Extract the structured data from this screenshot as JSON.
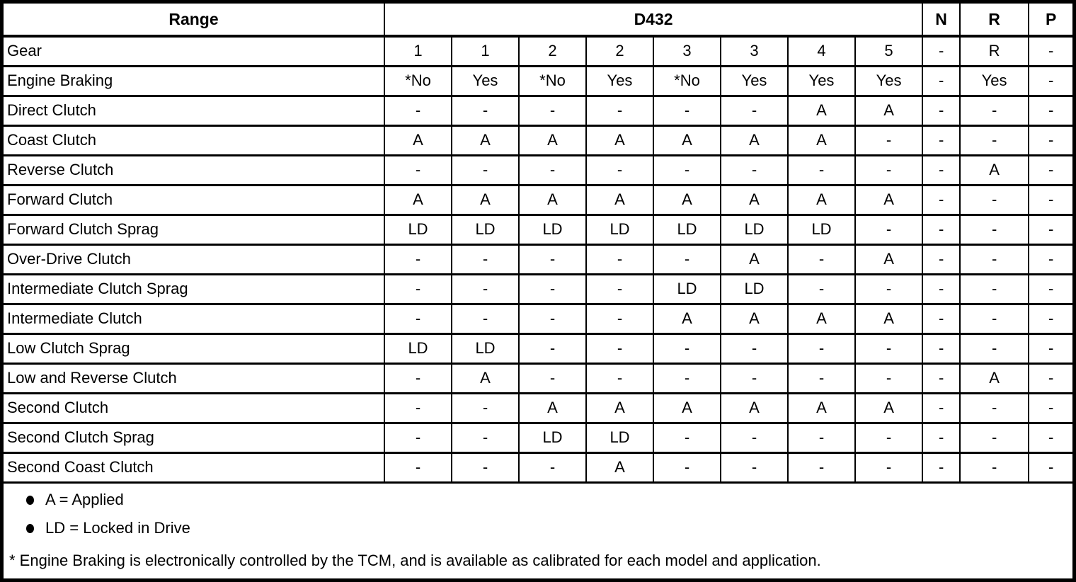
{
  "table": {
    "header": {
      "range": "Range",
      "group": "D432",
      "n": "N",
      "r": "R",
      "p": "P"
    },
    "rows": [
      {
        "label": "Gear",
        "values": [
          "1",
          "1",
          "2",
          "2",
          "3",
          "3",
          "4",
          "5",
          "-",
          "R",
          "-"
        ]
      },
      {
        "label": "Engine Braking",
        "values": [
          "*No",
          "Yes",
          "*No",
          "Yes",
          "*No",
          "Yes",
          "Yes",
          "Yes",
          "-",
          "Yes",
          "-"
        ]
      },
      {
        "label": "Direct Clutch",
        "values": [
          "-",
          "-",
          "-",
          "-",
          "-",
          "-",
          "A",
          "A",
          "-",
          "-",
          "-"
        ]
      },
      {
        "label": "Coast Clutch",
        "values": [
          "A",
          "A",
          "A",
          "A",
          "A",
          "A",
          "A",
          "-",
          "-",
          "-",
          "-"
        ]
      },
      {
        "label": "Reverse Clutch",
        "values": [
          "-",
          "-",
          "-",
          "-",
          "-",
          "-",
          "-",
          "-",
          "-",
          "A",
          "-"
        ]
      },
      {
        "label": "Forward Clutch",
        "values": [
          "A",
          "A",
          "A",
          "A",
          "A",
          "A",
          "A",
          "A",
          "-",
          "-",
          "-"
        ]
      },
      {
        "label": "Forward Clutch Sprag",
        "values": [
          "LD",
          "LD",
          "LD",
          "LD",
          "LD",
          "LD",
          "LD",
          "-",
          "-",
          "-",
          "-"
        ]
      },
      {
        "label": "Over-Drive Clutch",
        "values": [
          "-",
          "-",
          "-",
          "-",
          "-",
          "A",
          "-",
          "A",
          "-",
          "-",
          "-"
        ]
      },
      {
        "label": "Intermediate Clutch Sprag",
        "values": [
          "-",
          "-",
          "-",
          "-",
          "LD",
          "LD",
          "-",
          "-",
          "-",
          "-",
          "-"
        ]
      },
      {
        "label": "Intermediate Clutch",
        "values": [
          "-",
          "-",
          "-",
          "-",
          "A",
          "A",
          "A",
          "A",
          "-",
          "-",
          "-"
        ]
      },
      {
        "label": "Low Clutch Sprag",
        "values": [
          "LD",
          "LD",
          "-",
          "-",
          "-",
          "-",
          "-",
          "-",
          "-",
          "-",
          "-"
        ]
      },
      {
        "label": "Low and Reverse Clutch",
        "values": [
          "-",
          "A",
          "-",
          "-",
          "-",
          "-",
          "-",
          "-",
          "-",
          "A",
          "-"
        ]
      },
      {
        "label": "Second Clutch",
        "values": [
          "-",
          "-",
          "A",
          "A",
          "A",
          "A",
          "A",
          "A",
          "-",
          "-",
          "-"
        ]
      },
      {
        "label": "Second Clutch Sprag",
        "values": [
          "-",
          "-",
          "LD",
          "LD",
          "-",
          "-",
          "-",
          "-",
          "-",
          "-",
          "-"
        ]
      },
      {
        "label": "Second Coast Clutch",
        "values": [
          "-",
          "-",
          "-",
          "A",
          "-",
          "-",
          "-",
          "-",
          "-",
          "-",
          "-"
        ]
      }
    ]
  },
  "legend": {
    "items": [
      "A = Applied",
      "LD = Locked in Drive"
    ]
  },
  "footnote": "* Engine Braking is electronically controlled by the TCM, and is available as calibrated for each model and application."
}
